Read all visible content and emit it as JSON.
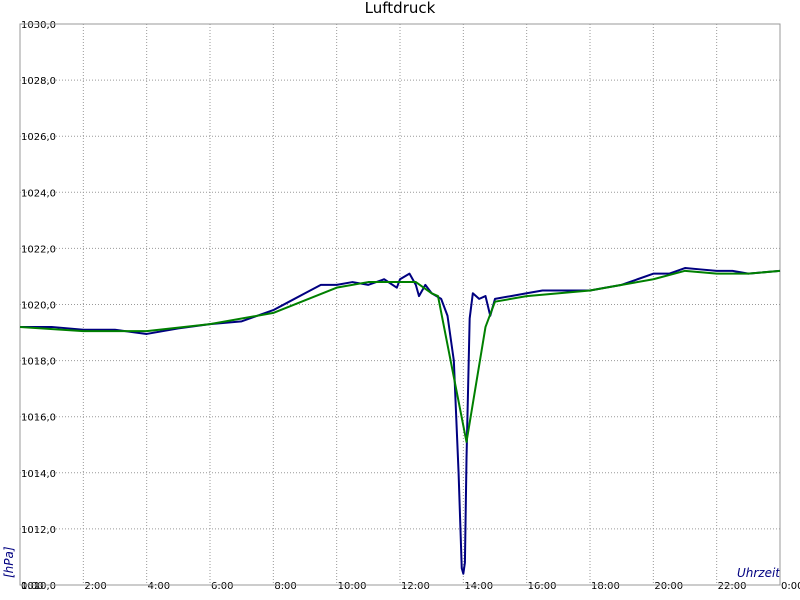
{
  "chart_data": {
    "type": "line",
    "title": "Luftdruck",
    "x_label": "Uhrzeit",
    "y_label": "[hPa]",
    "xlim": [
      0,
      24
    ],
    "xticks": [
      {
        "value": 0,
        "label": "0:00"
      },
      {
        "value": 2,
        "label": "2:00"
      },
      {
        "value": 4,
        "label": "4:00"
      },
      {
        "value": 6,
        "label": "6:00"
      },
      {
        "value": 8,
        "label": "8:00"
      },
      {
        "value": 10,
        "label": "10:00"
      },
      {
        "value": 12,
        "label": "12:00"
      },
      {
        "value": 14,
        "label": "14:00"
      },
      {
        "value": 16,
        "label": "16:00"
      },
      {
        "value": 18,
        "label": "18:00"
      },
      {
        "value": 20,
        "label": "20:00"
      },
      {
        "value": 22,
        "label": "22:00"
      },
      {
        "value": 24,
        "label": "0:00"
      }
    ],
    "ylim": [
      1010,
      1030
    ],
    "yticks": [
      {
        "value": 1010,
        "label": "1010,0"
      },
      {
        "value": 1012,
        "label": "1012,0"
      },
      {
        "value": 1014,
        "label": "1014,0"
      },
      {
        "value": 1016,
        "label": "1016,0"
      },
      {
        "value": 1018,
        "label": "1018,0"
      },
      {
        "value": 1020,
        "label": "1020,0"
      },
      {
        "value": 1022,
        "label": "1022,0"
      },
      {
        "value": 1024,
        "label": "1024,0"
      },
      {
        "value": 1026,
        "label": "1026,0"
      },
      {
        "value": 1028,
        "label": "1028,0"
      },
      {
        "value": 1030,
        "label": "1030,0"
      }
    ],
    "grid": true,
    "series": [
      {
        "color": "#000080",
        "x": [
          0,
          1,
          2,
          3,
          4,
          5,
          6,
          7,
          7.5,
          8,
          8.5,
          9,
          9.5,
          10,
          10.5,
          11,
          11.5,
          11.9,
          12,
          12.3,
          12.5,
          12.6,
          12.8,
          13,
          13.3,
          13.5,
          13.7,
          13.85,
          13.95,
          14,
          14.05,
          14.1,
          14.2,
          14.3,
          14.5,
          14.7,
          14.85,
          15,
          15.5,
          16,
          16.5,
          17,
          17.5,
          18,
          18.5,
          19,
          19.5,
          20,
          20.5,
          21,
          21.5,
          22,
          22.5,
          23,
          23.5,
          24
        ],
        "values": [
          1019.2,
          1019.2,
          1019.1,
          1019.1,
          1018.95,
          1019.15,
          1019.3,
          1019.4,
          1019.6,
          1019.8,
          1020.1,
          1020.4,
          1020.7,
          1020.7,
          1020.8,
          1020.7,
          1020.9,
          1020.6,
          1020.9,
          1021.1,
          1020.7,
          1020.3,
          1020.7,
          1020.4,
          1020.2,
          1019.6,
          1018.0,
          1014.0,
          1010.6,
          1010.4,
          1010.8,
          1014.5,
          1019.5,
          1020.4,
          1020.2,
          1020.3,
          1019.6,
          1020.2,
          1020.3,
          1020.4,
          1020.5,
          1020.5,
          1020.5,
          1020.5,
          1020.6,
          1020.7,
          1020.9,
          1021.1,
          1021.1,
          1021.3,
          1021.25,
          1021.2,
          1021.2,
          1021.1,
          1021.15,
          1021.2
        ]
      },
      {
        "color": "#008000",
        "x": [
          0,
          2,
          4,
          6,
          8,
          10,
          11,
          12,
          12.5,
          13,
          13.2,
          14.1,
          14.7,
          15,
          16,
          18,
          20,
          21,
          22,
          23,
          24
        ],
        "values": [
          1019.2,
          1019.05,
          1019.05,
          1019.3,
          1019.7,
          1020.6,
          1020.8,
          1020.8,
          1020.8,
          1020.4,
          1020.3,
          1015.1,
          1019.2,
          1020.1,
          1020.3,
          1020.5,
          1020.9,
          1021.2,
          1021.1,
          1021.1,
          1021.2
        ]
      }
    ]
  }
}
